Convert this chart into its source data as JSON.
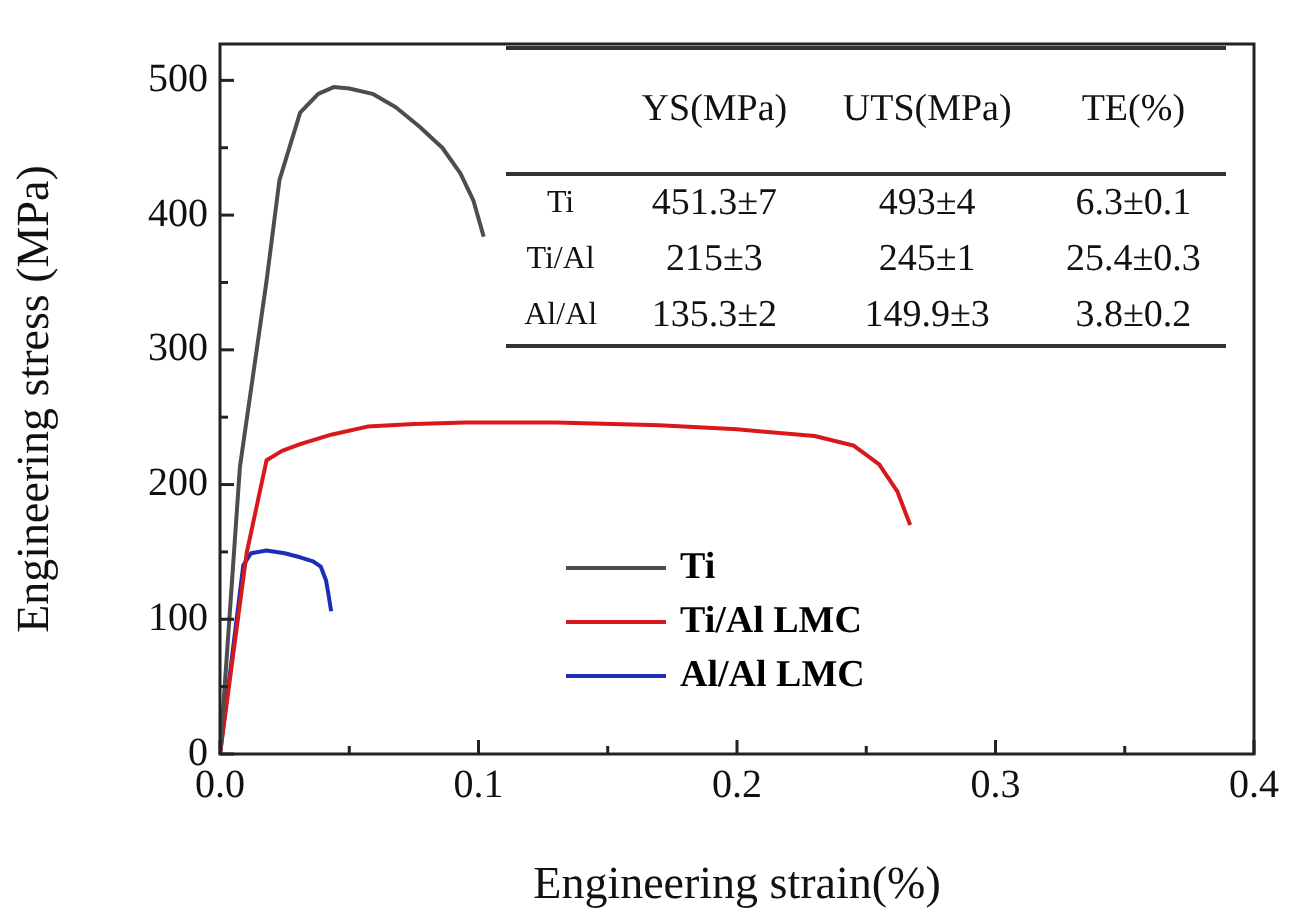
{
  "chart_data": {
    "type": "line",
    "xlabel": "Engineering strain(%)",
    "ylabel": "Engineering stress (MPa)",
    "xlim": [
      0,
      0.4
    ],
    "ylim": [
      0,
      527
    ],
    "xticks": [
      {
        "value": 0,
        "label": "0.0"
      },
      {
        "value": 0.05,
        "label": null
      },
      {
        "value": 0.1,
        "label": "0.1"
      },
      {
        "value": 0.15,
        "label": null
      },
      {
        "value": 0.2,
        "label": "0.2"
      },
      {
        "value": 0.25,
        "label": null
      },
      {
        "value": 0.3,
        "label": "0.3"
      },
      {
        "value": 0.35,
        "label": null
      },
      {
        "value": 0.4,
        "label": "0.4"
      }
    ],
    "yticks": [
      0,
      {
        "value": 50,
        "label": null
      },
      100,
      {
        "value": 150,
        "label": null
      },
      200,
      {
        "value": 250,
        "label": null
      },
      300,
      {
        "value": 350,
        "label": null
      },
      400,
      {
        "value": 450,
        "label": null
      },
      500
    ],
    "series": [
      {
        "name": "Ti",
        "color": "#4d4d4d",
        "x": [
          0,
          0.0077,
          0.018,
          0.023,
          0.031,
          0.038,
          0.044,
          0.05,
          0.059,
          0.068,
          0.077,
          0.086,
          0.093,
          0.098,
          0.102
        ],
        "values": [
          0,
          213,
          351,
          426,
          476,
          490,
          495,
          494,
          490,
          480,
          466,
          450,
          431,
          411,
          384
        ]
      },
      {
        "name": "Ti/Al LMC",
        "color": "#d7191c",
        "x": [
          0,
          0.0103,
          0.018,
          0.024,
          0.031,
          0.043,
          0.057,
          0.075,
          0.095,
          0.13,
          0.17,
          0.2,
          0.23,
          0.245,
          0.255,
          0.262,
          0.267
        ],
        "values": [
          0,
          149,
          218,
          225,
          230,
          237,
          243,
          245,
          246,
          246,
          244,
          241,
          236,
          229,
          215,
          195,
          170
        ]
      },
      {
        "name": "Al/Al LMC",
        "color": "#1a2fb5",
        "x": [
          0,
          0.009,
          0.012,
          0.018,
          0.025,
          0.031,
          0.036,
          0.039,
          0.041,
          0.042,
          0.043
        ],
        "values": [
          0,
          140,
          149,
          151,
          149,
          146,
          143,
          139,
          129,
          118,
          106
        ]
      }
    ],
    "legend": "bottom",
    "grid": false,
    "marker": "none",
    "line_style": "solid",
    "annotations": [
      "YS(MPa)",
      "UTS(MPa)",
      "TE(%)",
      "Ti",
      "451.3±7",
      "493±4",
      "6.3±0.1",
      "Ti/Al",
      "215±3",
      "245±1",
      "25.4±0.3",
      "Al/Al",
      "135.3±2",
      "149.9±3",
      "3.8±0.2"
    ]
  }
}
